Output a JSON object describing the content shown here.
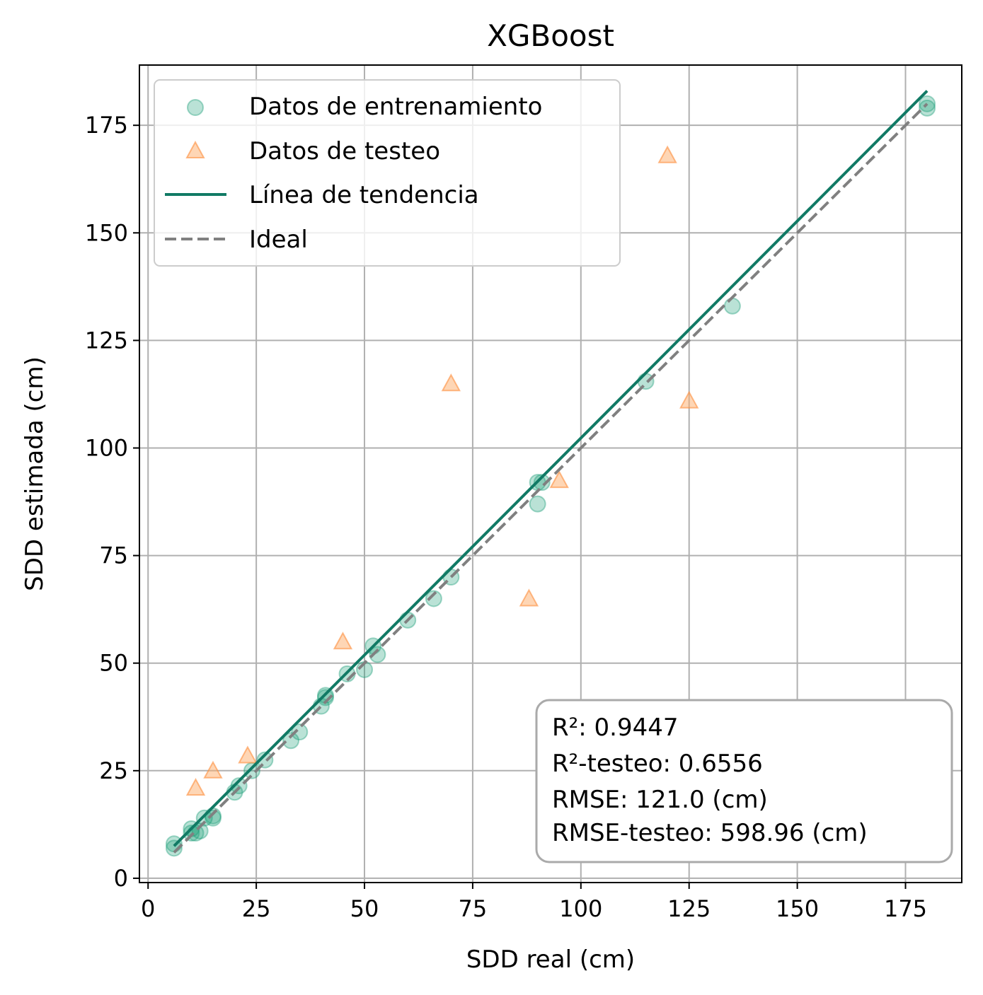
{
  "chart_data": {
    "type": "scatter",
    "title": "XGBoost",
    "xlabel": "SDD real (cm)",
    "ylabel": "SDD estimada (cm)",
    "xlim": [
      -2,
      188
    ],
    "ylim": [
      -1,
      189
    ],
    "xticks": [
      0,
      25,
      50,
      75,
      100,
      125,
      150,
      175
    ],
    "yticks": [
      0,
      25,
      50,
      75,
      100,
      125,
      150,
      175
    ],
    "grid": true,
    "legend_position": "upper-left",
    "series": [
      {
        "name": "Datos de entrenamiento",
        "kind": "scatter",
        "marker": "circle",
        "color": "#1b9e77",
        "points": [
          [
            6,
            7
          ],
          [
            6,
            8
          ],
          [
            10,
            10.5
          ],
          [
            10,
            11.5
          ],
          [
            11,
            10.5
          ],
          [
            12,
            11
          ],
          [
            13,
            14
          ],
          [
            15,
            14.5
          ],
          [
            15,
            14
          ],
          [
            20,
            20
          ],
          [
            21,
            21.5
          ],
          [
            24,
            25
          ],
          [
            27,
            27.5
          ],
          [
            33,
            32
          ],
          [
            35,
            34
          ],
          [
            40,
            40
          ],
          [
            41,
            42.5
          ],
          [
            41,
            42
          ],
          [
            46,
            47.5
          ],
          [
            50,
            48.5
          ],
          [
            52,
            54
          ],
          [
            53,
            52
          ],
          [
            60,
            60
          ],
          [
            66,
            65
          ],
          [
            70,
            70
          ],
          [
            90,
            92
          ],
          [
            90,
            87
          ],
          [
            91,
            92
          ],
          [
            115,
            115.5
          ],
          [
            135,
            133
          ],
          [
            180,
            179
          ],
          [
            180,
            180
          ]
        ]
      },
      {
        "name": "Datos de testeo",
        "kind": "scatter",
        "marker": "triangle",
        "color": "#fdae6b",
        "points": [
          [
            11,
            21
          ],
          [
            15,
            25
          ],
          [
            23,
            28.5
          ],
          [
            45,
            55
          ],
          [
            70,
            115
          ],
          [
            88,
            65
          ],
          [
            95,
            92.5
          ],
          [
            120,
            168
          ],
          [
            125,
            111
          ]
        ]
      },
      {
        "name": "Línea de tendencia",
        "kind": "line",
        "color": "#117a65",
        "points": [
          [
            6,
            7.5
          ],
          [
            180,
            183
          ]
        ]
      },
      {
        "name": "Ideal",
        "kind": "dashed-line",
        "color": "#808080",
        "points": [
          [
            6,
            6
          ],
          [
            180,
            180
          ]
        ]
      }
    ],
    "stats": [
      "R²: 0.9447",
      "R²-testeo: 0.6556",
      "RMSE: 121.0 (cm)",
      "RMSE-testeo: 598.96 (cm)"
    ]
  }
}
